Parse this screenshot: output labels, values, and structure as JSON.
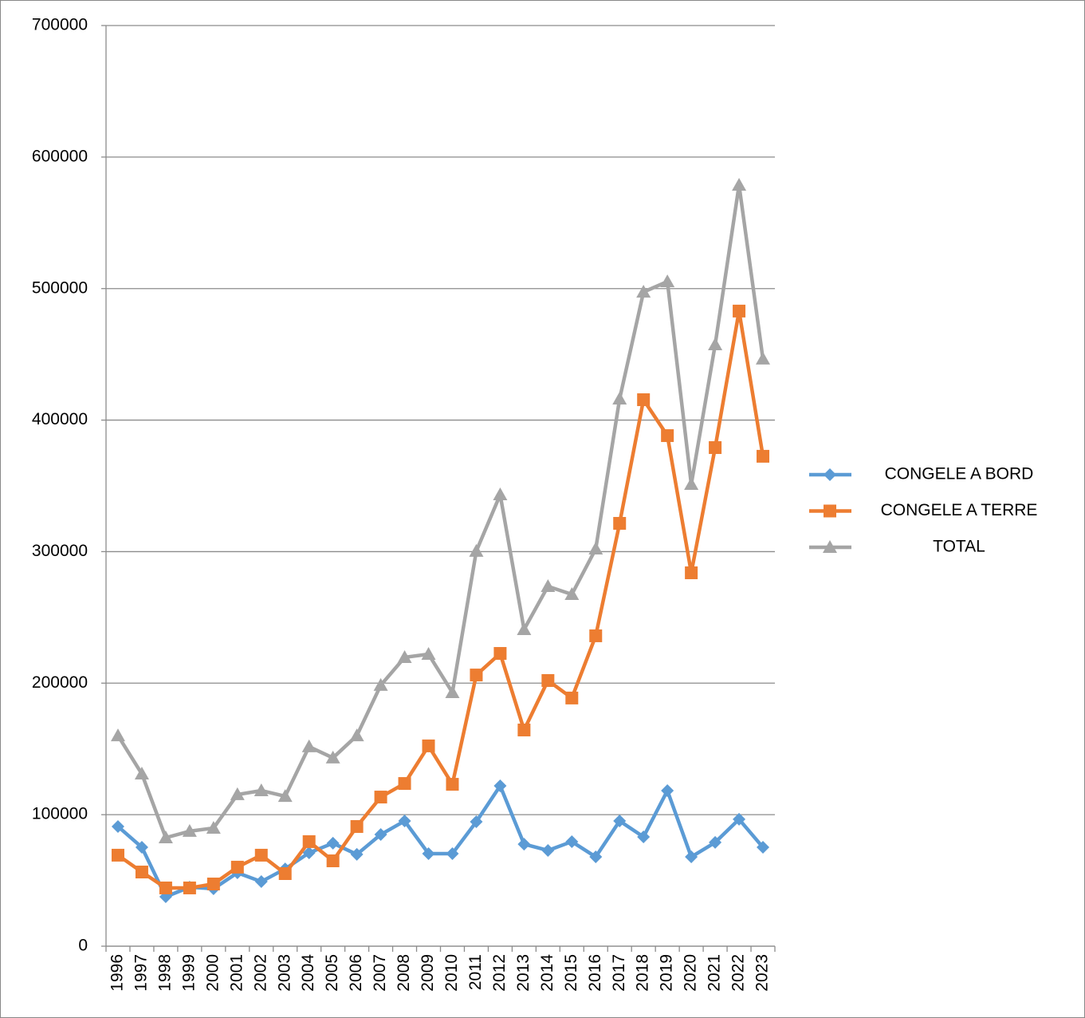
{
  "chart_data": {
    "type": "line",
    "categories": [
      "1996",
      "1997",
      "1998",
      "1999",
      "2000",
      "2001",
      "2002",
      "2003",
      "2004",
      "2005",
      "2006",
      "2007",
      "2008",
      "2009",
      "2010",
      "2011",
      "2012",
      "2013",
      "2014",
      "2015",
      "2016",
      "2017",
      "2018",
      "2019",
      "2020",
      "2021",
      "2022",
      "2023"
    ],
    "series": [
      {
        "name": "CONGELE A BORD",
        "color": "#5b9bd5",
        "marker": "diamond",
        "values": [
          91000,
          75200,
          37600,
          44900,
          43700,
          55800,
          49100,
          58800,
          71000,
          78300,
          69800,
          84900,
          95200,
          70400,
          70400,
          94600,
          121900,
          77600,
          72800,
          79500,
          67900,
          95200,
          83100,
          118300,
          67900,
          78900,
          96500,
          75200
        ]
      },
      {
        "name": "CONGELE A TERRE",
        "color": "#ed7d31",
        "marker": "square",
        "values": [
          69200,
          56400,
          44300,
          44300,
          47300,
          60100,
          69200,
          55200,
          79500,
          64900,
          91000,
          113400,
          123700,
          152300,
          123100,
          206200,
          222600,
          164400,
          202000,
          188700,
          236000,
          321500,
          415500,
          388200,
          283900,
          379100,
          482900,
          372500
        ]
      },
      {
        "name": "TOTAL",
        "color": "#a5a5a5",
        "marker": "triangle",
        "values": [
          160100,
          131000,
          82500,
          87400,
          89800,
          115300,
          118300,
          114000,
          151700,
          143200,
          160100,
          198400,
          219600,
          222000,
          192900,
          300300,
          343300,
          240800,
          273600,
          267500,
          302100,
          416100,
          497400,
          505300,
          351200,
          457400,
          578700,
          446500
        ]
      }
    ],
    "ylim": [
      0,
      700000
    ],
    "yticks": [
      0,
      100000,
      200000,
      300000,
      400000,
      500000,
      600000,
      700000
    ],
    "grid": true,
    "legend": "right"
  }
}
